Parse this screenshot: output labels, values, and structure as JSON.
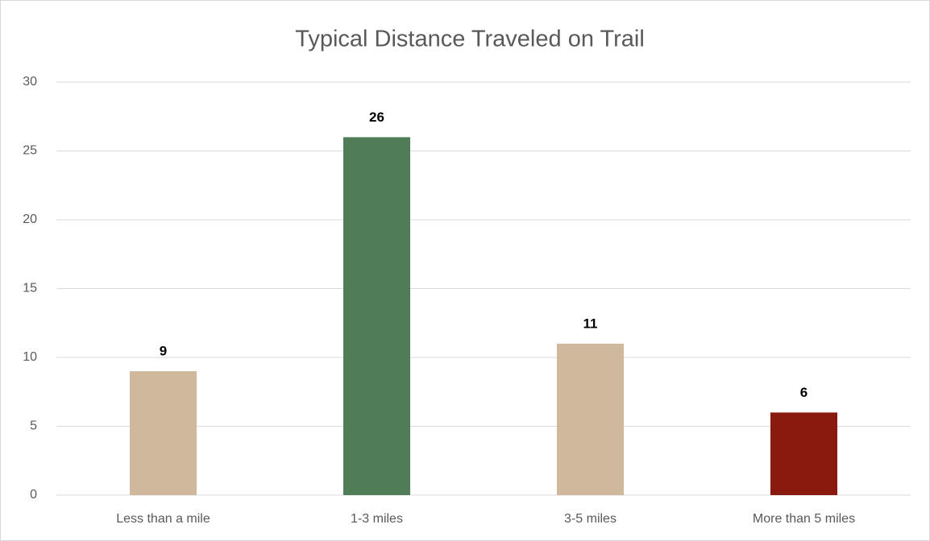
{
  "chart_data": {
    "type": "bar",
    "title": "Typical Distance Traveled on Trail",
    "categories": [
      "Less than a mile",
      "1-3 miles",
      "3-5 miles",
      "More than 5 miles"
    ],
    "values": [
      9,
      26,
      11,
      6
    ],
    "colors": [
      "#d0b89c",
      "#507c58",
      "#d0b89c",
      "#8b1a0e"
    ],
    "ylim": [
      0,
      30
    ],
    "yticks": [
      0,
      5,
      10,
      15,
      20,
      25,
      30
    ],
    "grid": true
  }
}
